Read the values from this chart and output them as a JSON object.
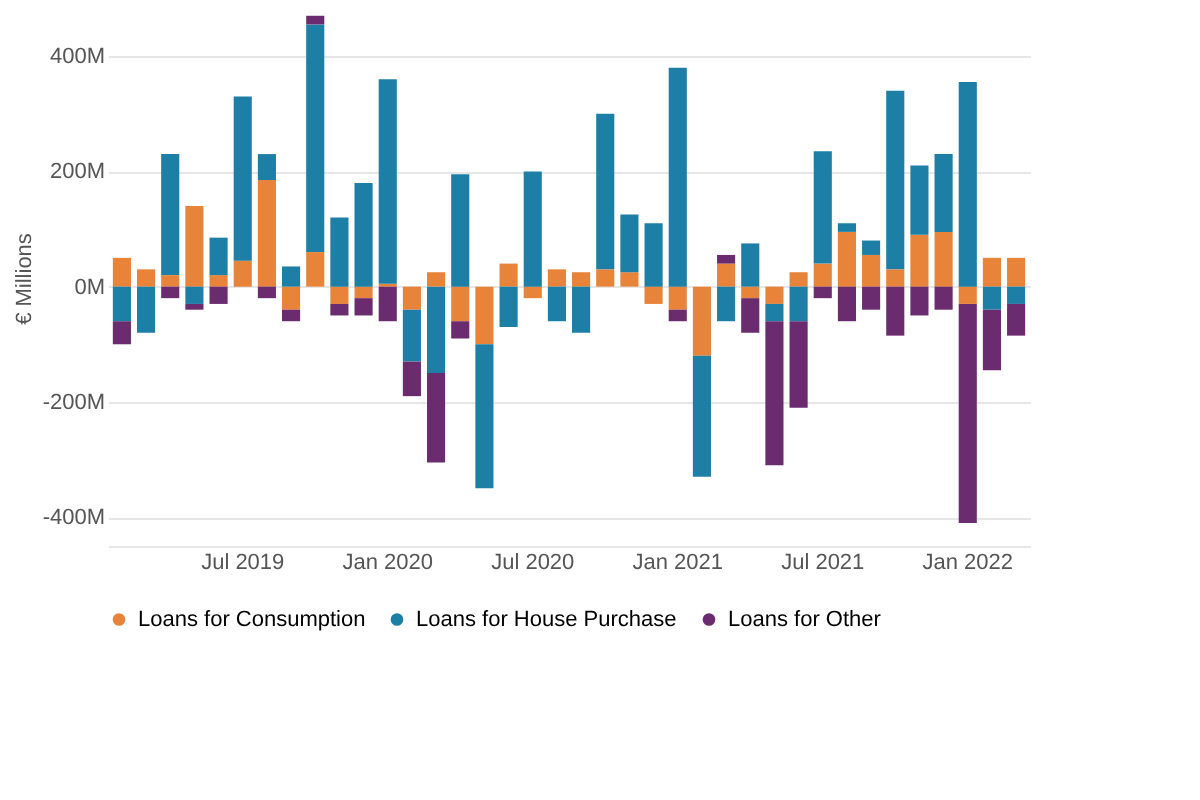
{
  "chart_data": {
    "type": "bar",
    "stacked": true,
    "ylabel": "€ Millions",
    "categories": [
      null,
      null,
      null,
      null,
      null,
      "Jul 2019",
      null,
      null,
      null,
      null,
      null,
      "Jan 2020",
      null,
      null,
      null,
      null,
      null,
      "Jul 2020",
      null,
      null,
      null,
      null,
      null,
      "Jan 2021",
      null,
      null,
      null,
      null,
      null,
      "Jul 2021",
      null,
      null,
      null,
      null,
      null,
      "Jan 2022",
      null,
      null
    ],
    "series": [
      {
        "name": "Loans for Consumption",
        "color": "#e8843a",
        "values": [
          50,
          30,
          20,
          140,
          20,
          45,
          185,
          -40,
          60,
          -30,
          -20,
          5,
          -40,
          25,
          -60,
          -100,
          40,
          -20,
          30,
          25,
          30,
          25,
          -30,
          -40,
          -120,
          40,
          -20,
          -30,
          25,
          40,
          95,
          55,
          30,
          90,
          95,
          -30,
          50,
          50
        ]
      },
      {
        "name": "Loans for House Purchase",
        "color": "#1d7fa6",
        "values": [
          -60,
          -80,
          210,
          -30,
          65,
          285,
          45,
          35,
          395,
          120,
          180,
          355,
          -90,
          -150,
          195,
          -250,
          -70,
          200,
          -60,
          -80,
          270,
          100,
          110,
          380,
          -210,
          -60,
          75,
          -30,
          -60,
          195,
          15,
          25,
          310,
          120,
          135,
          355,
          -40,
          -30
        ]
      },
      {
        "name": "Loans for Other",
        "color": "#6b2c6f",
        "values": [
          -40,
          0,
          -20,
          -10,
          -30,
          0,
          -20,
          -20,
          15,
          -20,
          -30,
          -60,
          -60,
          -155,
          -30,
          0,
          0,
          0,
          0,
          0,
          0,
          0,
          0,
          -20,
          0,
          15,
          -60,
          -250,
          -150,
          -20,
          -60,
          -40,
          -85,
          -50,
          -40,
          -380,
          -105,
          -55
        ]
      }
    ],
    "ylim": [
      -450,
      480
    ],
    "yticks": [
      {
        "value": -400,
        "label": "-400M"
      },
      {
        "value": -200,
        "label": "-200M"
      },
      {
        "value": 0,
        "label": "0M"
      },
      {
        "value": 200,
        "label": "200M"
      },
      {
        "value": 400,
        "label": "400M"
      }
    ],
    "grid": "y",
    "legend": "bottom"
  }
}
